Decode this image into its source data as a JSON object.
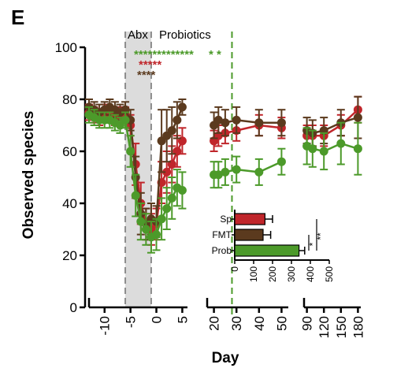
{
  "panel_label": "E",
  "phase_labels": {
    "abx": "Abx",
    "probiotics": "Probiotics"
  },
  "colors": {
    "sp": "#c0262b",
    "fmt": "#5b3a1e",
    "prob": "#4c9a2a",
    "abx_band": "#dcdcdc",
    "axis": "#000000"
  },
  "chart_data": [
    {
      "type": "line",
      "title": "",
      "xlabel": "Day",
      "ylabel": "Observed species",
      "ylim": [
        0,
        100
      ],
      "yticks": [
        "0",
        "20",
        "40",
        "60",
        "80",
        "100"
      ],
      "x_axis_segments": [
        {
          "range": [
            -13,
            6
          ],
          "ticks": [
            "-10",
            "-5",
            "0",
            "5"
          ]
        },
        {
          "range": [
            17,
            53
          ],
          "ticks": [
            "20",
            "30",
            "40",
            "50"
          ]
        },
        {
          "range": [
            85,
            185
          ],
          "ticks": [
            "90",
            "120",
            "150",
            "180"
          ]
        }
      ],
      "abx_period_days": [
        -6,
        -1
      ],
      "probiotics_end_day": 28,
      "significance_rows": [
        {
          "series": "Prob",
          "text": "*************",
          "extra": "*  *"
        },
        {
          "series": "Sp",
          "text": "*****"
        },
        {
          "series": "FMT",
          "text": "****"
        }
      ],
      "series": [
        {
          "name": "Sp",
          "x": [
            -13,
            -12,
            -11,
            -10,
            -9,
            -8,
            -7,
            -6,
            -5,
            -4,
            -3,
            -2,
            -1,
            0,
            1,
            2,
            3,
            4,
            5,
            20,
            22,
            25,
            30,
            40,
            50,
            90,
            100,
            120,
            150,
            180
          ],
          "y": [
            75,
            74,
            73,
            75,
            74,
            73,
            74,
            74,
            70,
            55,
            40,
            32,
            30,
            32,
            48,
            52,
            55,
            60,
            64,
            64,
            66,
            67,
            68,
            70,
            69,
            66,
            66,
            66,
            70,
            76
          ],
          "err": [
            3,
            3,
            3,
            3,
            3,
            3,
            3,
            3,
            4,
            8,
            8,
            6,
            6,
            6,
            8,
            8,
            7,
            6,
            5,
            4,
            4,
            4,
            4,
            4,
            4,
            4,
            4,
            4,
            4,
            5
          ]
        },
        {
          "name": "FMT",
          "x": [
            -13,
            -12,
            -11,
            -10,
            -9,
            -8,
            -7,
            -6,
            -5,
            -4,
            -3,
            -2,
            -1,
            0,
            1,
            2,
            3,
            4,
            5,
            20,
            22,
            25,
            30,
            40,
            50,
            90,
            100,
            120,
            150,
            180
          ],
          "y": [
            77,
            76,
            75,
            76,
            77,
            76,
            75,
            76,
            72,
            50,
            36,
            32,
            34,
            33,
            64,
            66,
            68,
            72,
            77,
            70,
            72,
            71,
            72,
            71,
            71,
            68,
            67,
            68,
            71,
            73
          ],
          "err": [
            3,
            3,
            3,
            3,
            3,
            3,
            3,
            3,
            4,
            8,
            8,
            6,
            6,
            6,
            12,
            10,
            9,
            7,
            3,
            5,
            5,
            5,
            5,
            5,
            5,
            5,
            5,
            5,
            5,
            8
          ]
        },
        {
          "name": "Prob",
          "x": [
            -13,
            -12,
            -11,
            -10,
            -9,
            -8,
            -7,
            -6,
            -5,
            -4,
            -3,
            -2,
            -1,
            0,
            1,
            2,
            3,
            4,
            5,
            20,
            22,
            25,
            30,
            40,
            50,
            90,
            100,
            120,
            150,
            180
          ],
          "y": [
            74,
            73,
            72,
            72,
            72,
            71,
            70,
            72,
            60,
            43,
            33,
            30,
            27,
            28,
            34,
            38,
            42,
            46,
            45,
            51,
            51,
            52,
            53,
            52,
            56,
            62,
            61,
            60,
            63,
            61
          ],
          "err": [
            3,
            3,
            3,
            3,
            3,
            3,
            3,
            3,
            6,
            8,
            7,
            6,
            6,
            6,
            8,
            8,
            8,
            7,
            7,
            5,
            5,
            5,
            5,
            5,
            5,
            7,
            7,
            7,
            8,
            10
          ]
        }
      ]
    },
    {
      "type": "bar",
      "orientation": "horizontal",
      "categories": [
        "Sp",
        "FMT",
        "Prob"
      ],
      "values": [
        160,
        150,
        340
      ],
      "err": [
        40,
        40,
        30
      ],
      "xlim": [
        0,
        500
      ],
      "xticks": [
        "0",
        "100",
        "200",
        "300",
        "400",
        "500"
      ],
      "significance": [
        {
          "between": [
            "Sp",
            "Prob"
          ],
          "label": "**"
        },
        {
          "between": [
            "FMT",
            "Prob"
          ],
          "label": "*"
        }
      ]
    }
  ]
}
